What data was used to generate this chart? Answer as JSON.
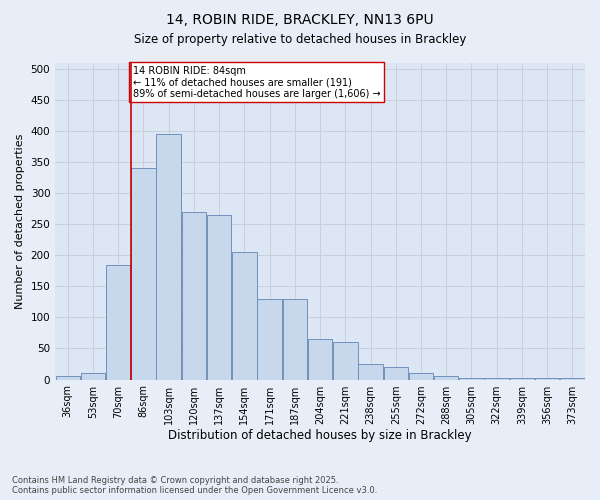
{
  "title1": "14, ROBIN RIDE, BRACKLEY, NN13 6PU",
  "title2": "Size of property relative to detached houses in Brackley",
  "xlabel": "Distribution of detached houses by size in Brackley",
  "ylabel": "Number of detached properties",
  "bin_labels": [
    "36sqm",
    "53sqm",
    "70sqm",
    "86sqm",
    "103sqm",
    "120sqm",
    "137sqm",
    "154sqm",
    "171sqm",
    "187sqm",
    "204sqm",
    "221sqm",
    "238sqm",
    "255sqm",
    "272sqm",
    "288sqm",
    "305sqm",
    "322sqm",
    "339sqm",
    "356sqm",
    "373sqm"
  ],
  "counts": [
    5,
    10,
    185,
    340,
    395,
    270,
    265,
    205,
    130,
    130,
    65,
    60,
    25,
    20,
    10,
    5,
    3,
    2,
    2,
    2,
    3
  ],
  "bar_facecolor": "#c8d8ec",
  "bar_edgecolor": "#7090bb",
  "property_value_bin": 3,
  "vline_color": "#cc0000",
  "annotation_text": "14 ROBIN RIDE: 84sqm\n← 11% of detached houses are smaller (191)\n89% of semi-detached houses are larger (1,606) →",
  "annotation_boxcolor": "white",
  "annotation_boxedge": "#cc0000",
  "grid_color": "#c8d0dc",
  "bg_color": "#e8eef8",
  "plot_bg_color": "#dce6f5",
  "ylim": [
    0,
    510
  ],
  "yticks": [
    0,
    50,
    100,
    150,
    200,
    250,
    300,
    350,
    400,
    450,
    500
  ],
  "footer_line1": "Contains HM Land Registry data © Crown copyright and database right 2025.",
  "footer_line2": "Contains public sector information licensed under the Open Government Licence v3.0."
}
